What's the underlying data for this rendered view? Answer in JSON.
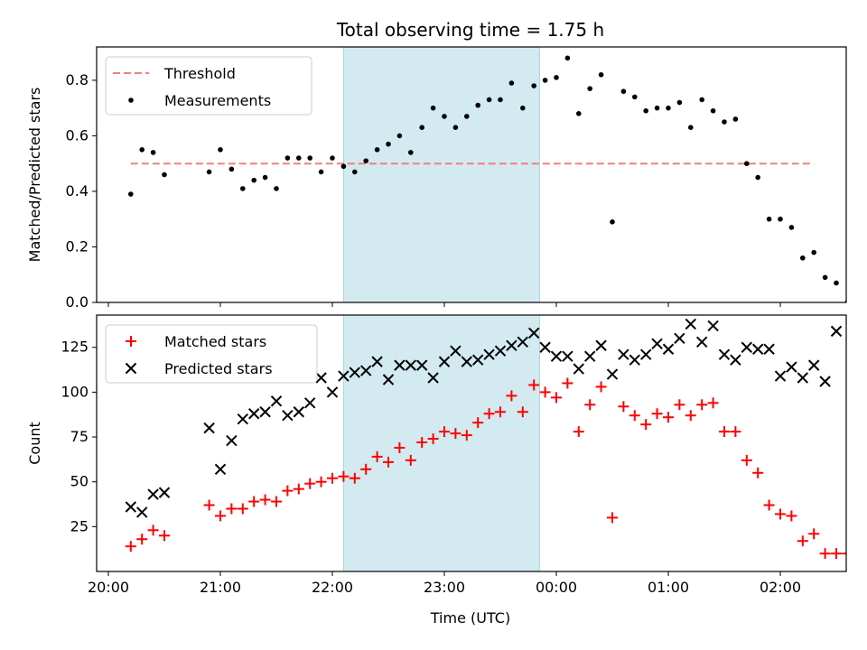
{
  "chart_data": {
    "title": "Total observing time = 1.75 h",
    "xlabel": "Time (UTC)",
    "x_ticks": [
      "20:00",
      "21:00",
      "22:00",
      "23:00",
      "00:00",
      "01:00",
      "02:00"
    ],
    "shaded_interval": {
      "start": "22:06",
      "end": "23:51",
      "color": "#d3eaf1"
    },
    "panels": [
      {
        "type": "scatter",
        "ylabel": "Matched/Predicted stars",
        "ylim": [
          0,
          0.92
        ],
        "y_ticks": [
          "0.0",
          "0.2",
          "0.4",
          "0.6",
          "0.8"
        ],
        "legend": {
          "placement": "upper-left",
          "entries": [
            "Threshold",
            "Measurements"
          ]
        },
        "series": [
          {
            "name": "Threshold",
            "kind": "dashed-line",
            "color": "#f08080",
            "points": [
              [
                "20:12",
                0.5
              ],
              [
                "02:18",
                0.5
              ]
            ]
          },
          {
            "name": "Measurements",
            "kind": "dot",
            "color": "#000000",
            "points": [
              [
                "20:12",
                0.39
              ],
              [
                "20:18",
                0.55
              ],
              [
                "20:24",
                0.54
              ],
              [
                "20:30",
                0.46
              ],
              [
                "20:54",
                0.47
              ],
              [
                "21:00",
                0.55
              ],
              [
                "21:06",
                0.48
              ],
              [
                "21:12",
                0.41
              ],
              [
                "21:18",
                0.44
              ],
              [
                "21:24",
                0.45
              ],
              [
                "21:30",
                0.41
              ],
              [
                "21:36",
                0.52
              ],
              [
                "21:42",
                0.52
              ],
              [
                "21:48",
                0.52
              ],
              [
                "21:54",
                0.47
              ],
              [
                "22:00",
                0.52
              ],
              [
                "22:06",
                0.49
              ],
              [
                "22:12",
                0.47
              ],
              [
                "22:18",
                0.51
              ],
              [
                "22:24",
                0.55
              ],
              [
                "22:30",
                0.57
              ],
              [
                "22:36",
                0.6
              ],
              [
                "22:42",
                0.54
              ],
              [
                "22:48",
                0.63
              ],
              [
                "22:54",
                0.7
              ],
              [
                "23:00",
                0.67
              ],
              [
                "23:06",
                0.63
              ],
              [
                "23:12",
                0.67
              ],
              [
                "23:18",
                0.71
              ],
              [
                "23:24",
                0.73
              ],
              [
                "23:30",
                0.73
              ],
              [
                "23:36",
                0.79
              ],
              [
                "23:42",
                0.7
              ],
              [
                "23:48",
                0.78
              ],
              [
                "23:54",
                0.8
              ],
              [
                "00:00",
                0.81
              ],
              [
                "00:06",
                0.88
              ],
              [
                "00:12",
                0.68
              ],
              [
                "00:18",
                0.77
              ],
              [
                "00:24",
                0.82
              ],
              [
                "00:30",
                0.29
              ],
              [
                "00:36",
                0.76
              ],
              [
                "00:42",
                0.74
              ],
              [
                "00:48",
                0.69
              ],
              [
                "00:54",
                0.7
              ],
              [
                "01:00",
                0.7
              ],
              [
                "01:06",
                0.72
              ],
              [
                "01:12",
                0.63
              ],
              [
                "01:18",
                0.73
              ],
              [
                "01:24",
                0.69
              ],
              [
                "01:30",
                0.65
              ],
              [
                "01:36",
                0.66
              ],
              [
                "01:42",
                0.5
              ],
              [
                "01:48",
                0.45
              ],
              [
                "01:54",
                0.3
              ],
              [
                "02:00",
                0.3
              ],
              [
                "02:06",
                0.27
              ],
              [
                "02:12",
                0.16
              ],
              [
                "02:18",
                0.18
              ],
              [
                "02:24",
                0.09
              ],
              [
                "02:30",
                0.07
              ],
              [
                "02:36",
                0.0
              ],
              [
                "02:42",
                0.0
              ],
              [
                "02:48",
                0.0
              ],
              [
                "02:54",
                0.0
              ],
              [
                "03:00",
                0.1
              ],
              [
                "03:06",
                0.12
              ],
              [
                "03:12",
                0.12
              ],
              [
                "03:18",
                0.14
              ]
            ]
          }
        ]
      },
      {
        "type": "scatter",
        "ylabel": "Count",
        "ylim": [
          0,
          143
        ],
        "y_ticks": [
          "25",
          "50",
          "75",
          "100",
          "125"
        ],
        "legend": {
          "placement": "upper-left",
          "entries": [
            "Matched stars",
            "Predicted stars"
          ]
        },
        "series": [
          {
            "name": "Matched stars",
            "kind": "plus",
            "color": "#ff0000",
            "points": [
              [
                "20:12",
                14
              ],
              [
                "20:18",
                18
              ],
              [
                "20:24",
                23
              ],
              [
                "20:30",
                20
              ],
              [
                "20:54",
                37
              ],
              [
                "21:00",
                31
              ],
              [
                "21:06",
                35
              ],
              [
                "21:12",
                35
              ],
              [
                "21:18",
                39
              ],
              [
                "21:24",
                40
              ],
              [
                "21:30",
                39
              ],
              [
                "21:36",
                45
              ],
              [
                "21:42",
                46
              ],
              [
                "21:48",
                49
              ],
              [
                "21:54",
                50
              ],
              [
                "22:00",
                52
              ],
              [
                "22:06",
                53
              ],
              [
                "22:12",
                52
              ],
              [
                "22:18",
                57
              ],
              [
                "22:24",
                64
              ],
              [
                "22:30",
                61
              ],
              [
                "22:36",
                69
              ],
              [
                "22:42",
                62
              ],
              [
                "22:48",
                72
              ],
              [
                "22:54",
                74
              ],
              [
                "23:00",
                78
              ],
              [
                "23:06",
                77
              ],
              [
                "23:12",
                76
              ],
              [
                "23:18",
                83
              ],
              [
                "23:24",
                88
              ],
              [
                "23:30",
                89
              ],
              [
                "23:36",
                98
              ],
              [
                "23:42",
                89
              ],
              [
                "23:48",
                104
              ],
              [
                "23:54",
                100
              ],
              [
                "00:00",
                97
              ],
              [
                "00:06",
                105
              ],
              [
                "00:12",
                78
              ],
              [
                "00:18",
                93
              ],
              [
                "00:24",
                103
              ],
              [
                "00:30",
                30
              ],
              [
                "00:36",
                92
              ],
              [
                "00:42",
                87
              ],
              [
                "00:48",
                82
              ],
              [
                "00:54",
                88
              ],
              [
                "01:00",
                86
              ],
              [
                "01:06",
                93
              ],
              [
                "01:12",
                87
              ],
              [
                "01:18",
                93
              ],
              [
                "01:24",
                94
              ],
              [
                "01:30",
                78
              ],
              [
                "01:36",
                78
              ],
              [
                "01:42",
                62
              ],
              [
                "01:48",
                55
              ],
              [
                "01:54",
                37
              ],
              [
                "02:00",
                32
              ],
              [
                "02:06",
                31
              ],
              [
                "02:12",
                17
              ],
              [
                "02:18",
                21
              ],
              [
                "02:24",
                10
              ],
              [
                "02:30",
                10
              ],
              [
                "02:36",
                10
              ],
              [
                "02:42",
                10
              ],
              [
                "02:48",
                10
              ],
              [
                "02:54",
                10
              ],
              [
                "03:00",
                8
              ],
              [
                "03:06",
                12
              ],
              [
                "03:12",
                12
              ],
              [
                "03:18",
                10
              ]
            ]
          },
          {
            "name": "Predicted stars",
            "kind": "cross",
            "color": "#000000",
            "points": [
              [
                "20:12",
                36
              ],
              [
                "20:18",
                33
              ],
              [
                "20:24",
                43
              ],
              [
                "20:30",
                44
              ],
              [
                "20:54",
                80
              ],
              [
                "21:00",
                57
              ],
              [
                "21:06",
                73
              ],
              [
                "21:12",
                85
              ],
              [
                "21:18",
                88
              ],
              [
                "21:24",
                89
              ],
              [
                "21:30",
                95
              ],
              [
                "21:36",
                87
              ],
              [
                "21:42",
                89
              ],
              [
                "21:48",
                94
              ],
              [
                "21:54",
                108
              ],
              [
                "22:00",
                100
              ],
              [
                "22:06",
                109
              ],
              [
                "22:12",
                111
              ],
              [
                "22:18",
                112
              ],
              [
                "22:24",
                117
              ],
              [
                "22:30",
                107
              ],
              [
                "22:36",
                115
              ],
              [
                "22:42",
                115
              ],
              [
                "22:48",
                115
              ],
              [
                "22:54",
                108
              ],
              [
                "23:00",
                117
              ],
              [
                "23:06",
                123
              ],
              [
                "23:12",
                117
              ],
              [
                "23:18",
                118
              ],
              [
                "23:24",
                121
              ],
              [
                "23:30",
                123
              ],
              [
                "23:36",
                126
              ],
              [
                "23:42",
                128
              ],
              [
                "23:48",
                133
              ],
              [
                "23:54",
                125
              ],
              [
                "00:00",
                120
              ],
              [
                "00:06",
                120
              ],
              [
                "00:12",
                113
              ],
              [
                "00:18",
                120
              ],
              [
                "00:24",
                126
              ],
              [
                "00:30",
                110
              ],
              [
                "00:36",
                121
              ],
              [
                "00:42",
                118
              ],
              [
                "00:48",
                121
              ],
              [
                "00:54",
                127
              ],
              [
                "01:00",
                124
              ],
              [
                "01:06",
                130
              ],
              [
                "01:12",
                138
              ],
              [
                "01:18",
                128
              ],
              [
                "01:24",
                137
              ],
              [
                "01:30",
                121
              ],
              [
                "01:36",
                118
              ],
              [
                "01:42",
                125
              ],
              [
                "01:48",
                124
              ],
              [
                "01:54",
                124
              ],
              [
                "02:00",
                109
              ],
              [
                "02:06",
                114
              ],
              [
                "02:12",
                108
              ],
              [
                "02:18",
                115
              ],
              [
                "02:24",
                106
              ],
              [
                "02:30",
                134
              ],
              [
                "03:00",
                72
              ],
              [
                "03:06",
                99
              ],
              [
                "03:12",
                102
              ],
              [
                "03:18",
                73
              ]
            ]
          }
        ]
      }
    ]
  }
}
